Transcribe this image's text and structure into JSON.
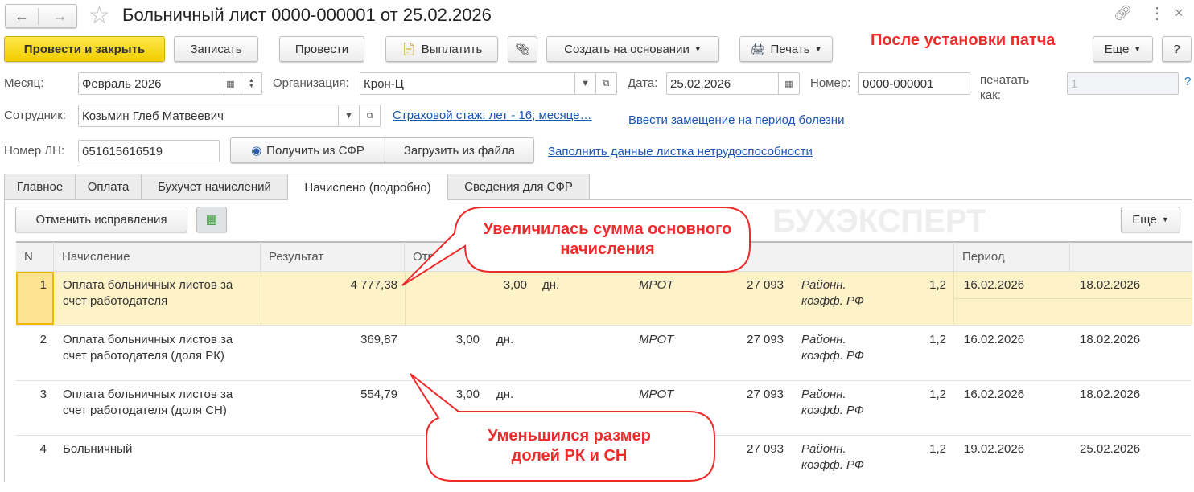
{
  "window": {
    "title": "Больничный лист 0000-000001 от 25.02.2026"
  },
  "toolbar": {
    "post_close": "Провести и закрыть",
    "save": "Записать",
    "post": "Провести",
    "pay": "Выплатить",
    "create_based": "Создать на основании",
    "print": "Печать",
    "more": "Еще",
    "help": "?"
  },
  "annotation_title": "После установки патча",
  "form": {
    "month_label": "Месяц:",
    "month_value": "Февраль 2026",
    "org_label": "Организация:",
    "org_value": "Крон-Ц",
    "date_label": "Дата:",
    "date_value": "25.02.2026",
    "number_label": "Номер:",
    "number_value": "0000-000001",
    "print_as_label": "печатать как:",
    "print_as_value": "1",
    "print_as_help": "?",
    "employee_label": "Сотрудник:",
    "employee_value": "Козьмин Глеб Матвеевич",
    "insurance_link": "Страховой стаж: лет - 16; месяце…",
    "replace_link": "Ввести замещение на период болезни",
    "ln_label": "Номер ЛН:",
    "ln_value": "651615616519",
    "get_sfr": "Получить из СФР",
    "load_file": "Загрузить из файла",
    "fill_link": "Заполнить данные листка нетрудоспособности"
  },
  "tabs": [
    {
      "label": "Главное"
    },
    {
      "label": "Оплата"
    },
    {
      "label": "Бухучет начислений"
    },
    {
      "label": "Начислено (подробно)",
      "active": true
    },
    {
      "label": "Сведения для СФР"
    }
  ],
  "table_toolbar": {
    "cancel_fixes": "Отменить исправления",
    "more": "Еще"
  },
  "table": {
    "headers": [
      "N",
      "Начисление",
      "Результат",
      "Отр",
      "Период"
    ],
    "rows": [
      {
        "n": "1",
        "name": "Оплата больничных листов за счет работодателя",
        "result": "4 777,38",
        "days": "3,00",
        "unit": "дн.",
        "base": "МРОТ",
        "amount": "27 093",
        "coef_name": "Районн. коэфф. РФ",
        "coef": "1,2",
        "from": "16.02.2026",
        "to": "18.02.2026"
      },
      {
        "n": "2",
        "name": "Оплата больничных листов за счет работодателя (доля РК)",
        "result": "369,87",
        "days": "3,00",
        "unit": "дн.",
        "base": "МРОТ",
        "amount": "27 093",
        "coef_name": "Районн. коэфф. РФ",
        "coef": "1,2",
        "from": "16.02.2026",
        "to": "18.02.2026"
      },
      {
        "n": "3",
        "name": "Оплата больничных листов за счет работодателя (доля СН)",
        "result": "554,79",
        "days": "3,00",
        "unit": "дн.",
        "base": "МРОТ",
        "amount": "27 093",
        "coef_name": "Районн. коэфф. РФ",
        "coef": "1,2",
        "from": "16.02.2026",
        "to": "18.02.2026"
      },
      {
        "n": "4",
        "name": "Больничный",
        "result": "",
        "days": "",
        "unit": "",
        "base": "",
        "amount": "27 093",
        "coef_name": "Районн. коэфф. РФ",
        "coef": "1,2",
        "from": "19.02.2026",
        "to": "25.02.2026"
      }
    ]
  },
  "callouts": {
    "top": "Увеличилась сумма основного начисления",
    "bottom": "Уменьшился размер долей РК и СН"
  },
  "watermark": "БУХЭКСПЕРТ",
  "colors": {
    "accent_yellow": "#f5d400",
    "selected_row": "#fdf2c8",
    "callout_red": "#ee2b2b",
    "link": "#1a56b8"
  }
}
